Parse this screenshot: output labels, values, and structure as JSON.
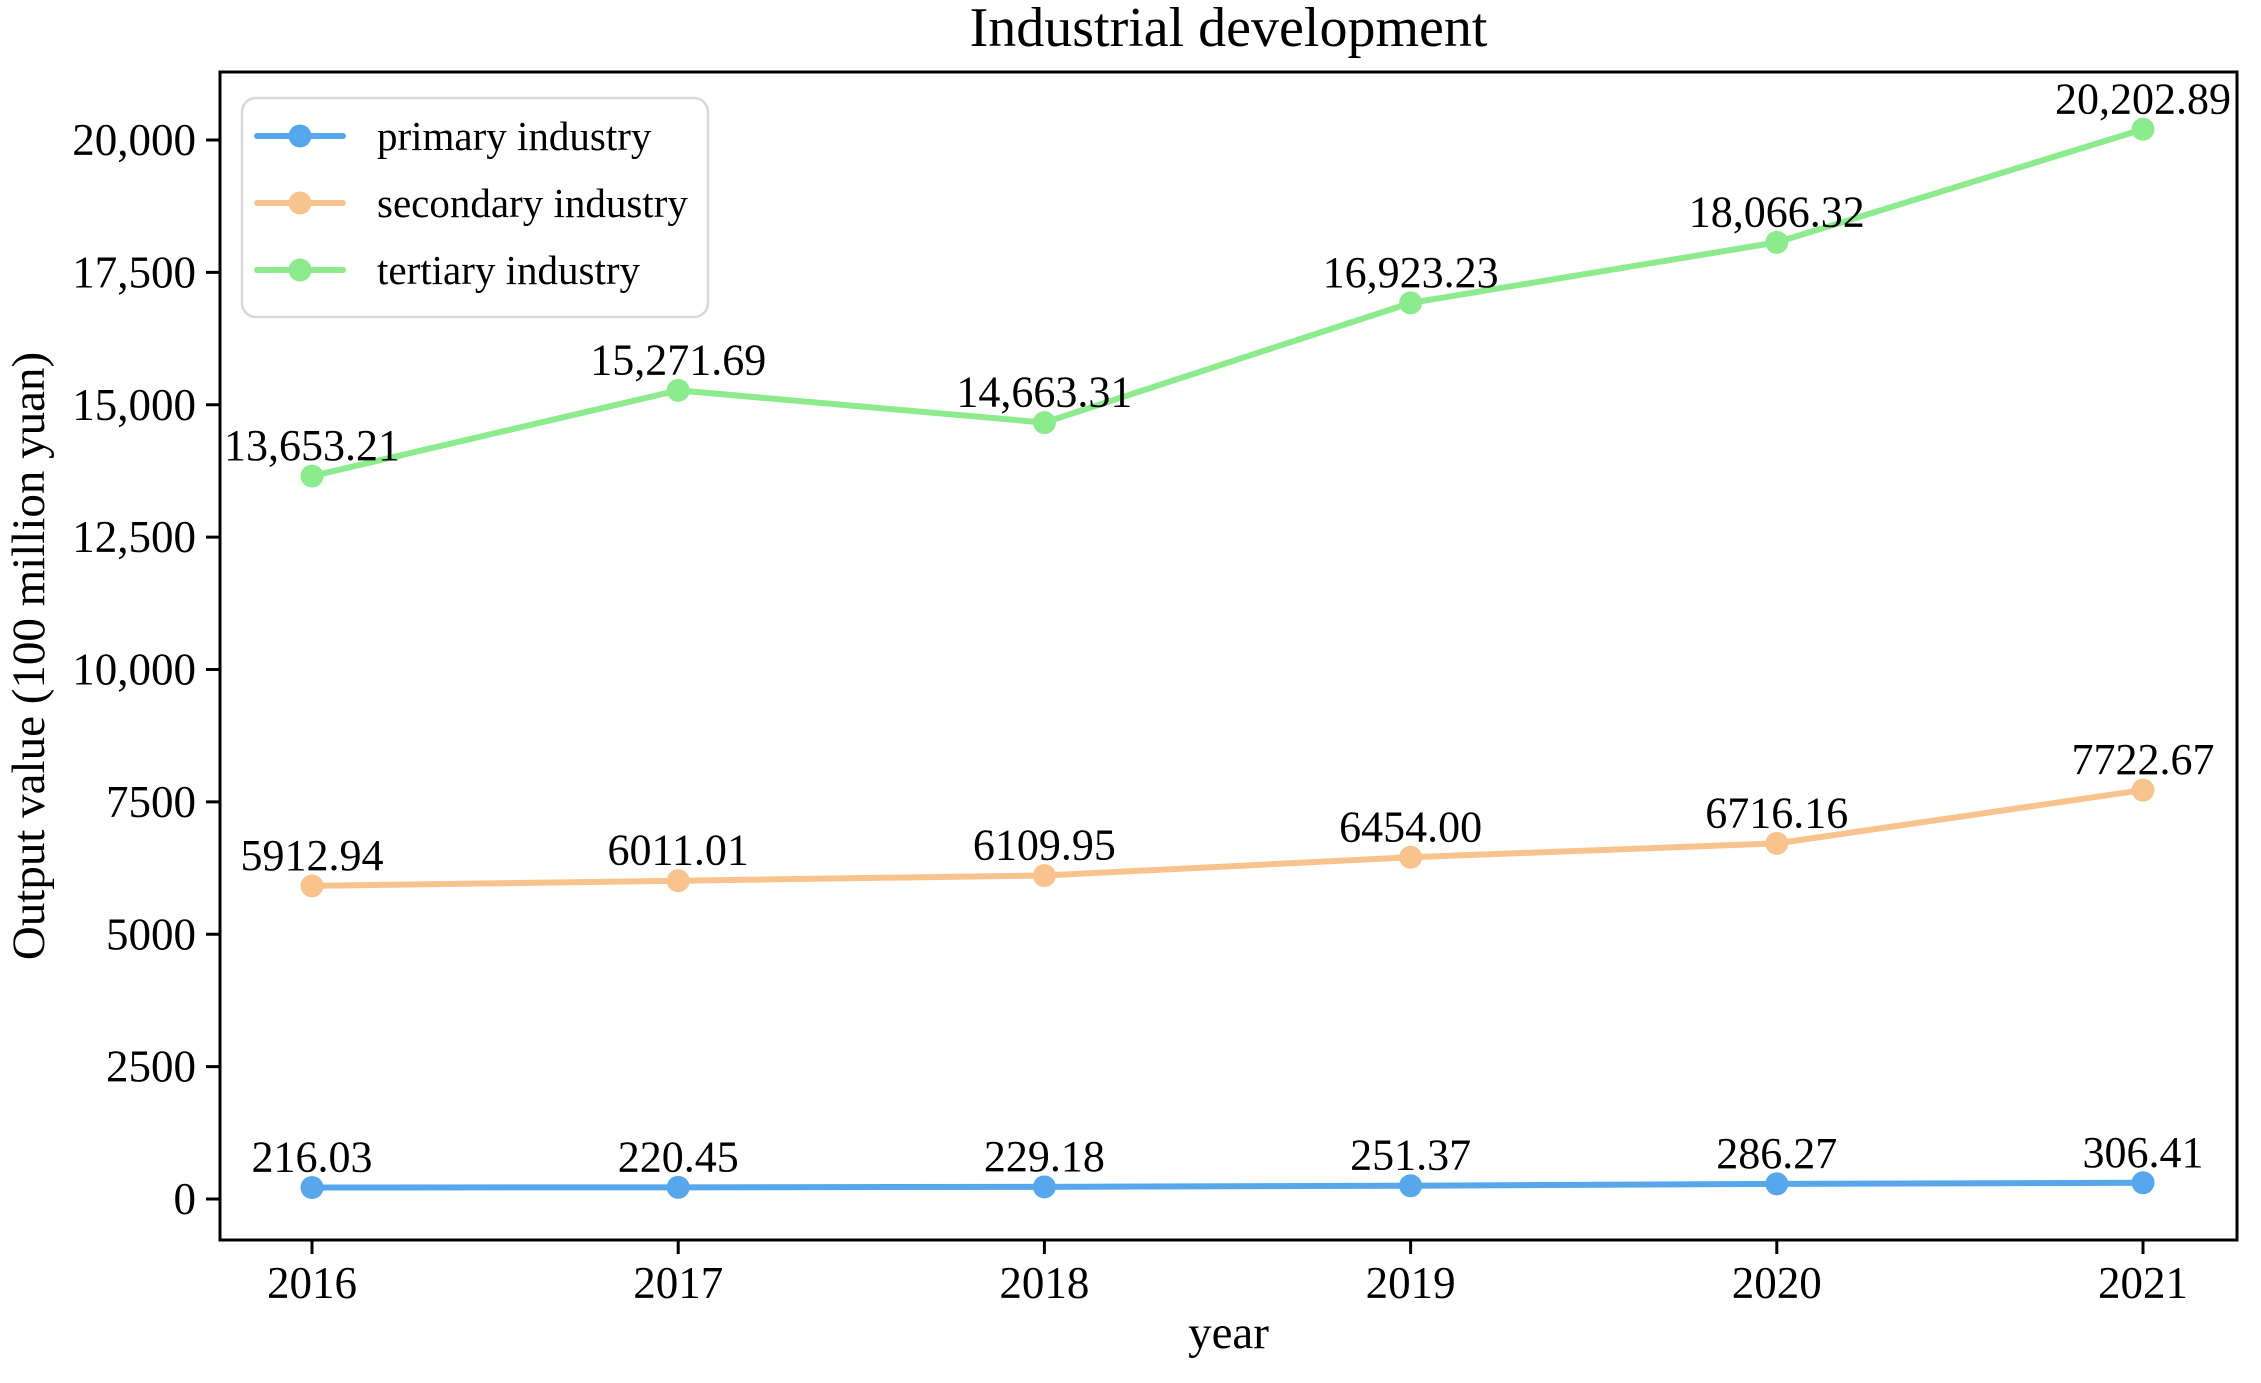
{
  "chart_data": {
    "type": "line",
    "title": "Industrial development",
    "xlabel": "year",
    "ylabel": "Output value (100 million yuan)",
    "categories": [
      "2016",
      "2017",
      "2018",
      "2019",
      "2020",
      "2021"
    ],
    "series": [
      {
        "name": "primary industry",
        "color": "#56A7EC",
        "values": [
          216.03,
          220.45,
          229.18,
          251.37,
          286.27,
          306.41
        ],
        "labels": [
          "216.03",
          "220.45",
          "229.18",
          "251.37",
          "286.27",
          "306.41"
        ]
      },
      {
        "name": "secondary industry",
        "color": "#F9C38E",
        "values": [
          5912.94,
          6011.01,
          6109.95,
          6454.0,
          6716.16,
          7722.67
        ],
        "labels": [
          "5912.94",
          "6011.01",
          "6109.95",
          "6454.00",
          "6716.16",
          "7722.67"
        ]
      },
      {
        "name": "tertiary industry",
        "color": "#8CEB8C",
        "values": [
          13653.21,
          15271.69,
          14663.31,
          16923.23,
          18066.32,
          20202.89
        ],
        "labels": [
          "13,653.21",
          "15,271.69",
          "14,663.31",
          "16,923.23",
          "18,066.32",
          "20,202.89"
        ]
      }
    ],
    "yticks": {
      "values": [
        0,
        2500,
        5000,
        7500,
        10000,
        12500,
        15000,
        17500,
        20000
      ],
      "labels": [
        "0",
        "2500",
        "5000",
        "7500",
        "10,000",
        "12,500",
        "15,000",
        "17,500",
        "20,000"
      ]
    },
    "ylim": [
      0,
      20000
    ],
    "grid": false,
    "legend_position": "upper left",
    "axis_color": "#000000",
    "text_color": "#000000",
    "legend_border_color": "#d8d8d8",
    "background_color": "#ffffff"
  }
}
